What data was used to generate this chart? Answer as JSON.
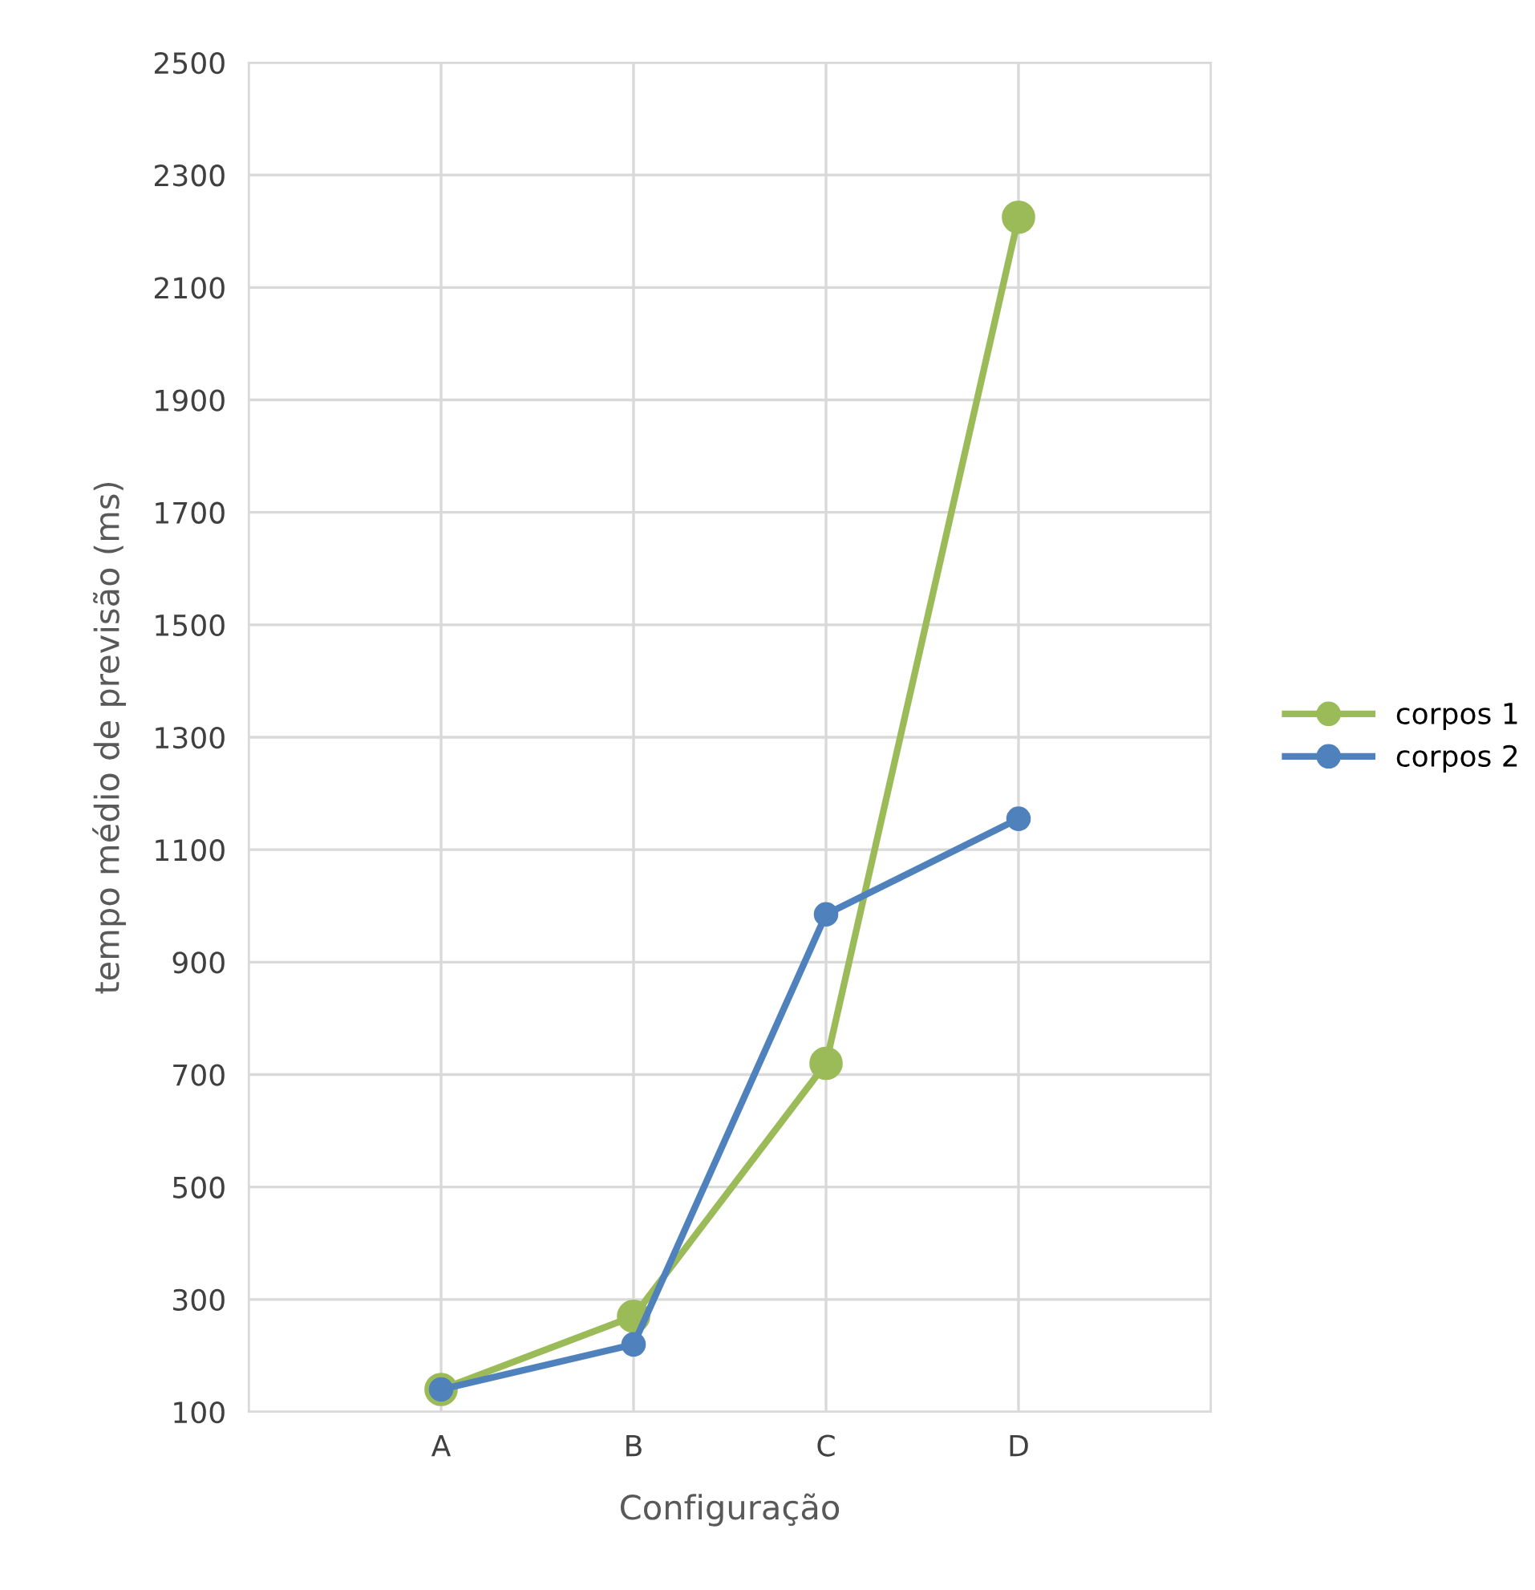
{
  "chart_data": {
    "type": "line",
    "xlabel": "Configuração",
    "ylabel": "tempo médio de previsão (ms)",
    "categories": [
      "A",
      "B",
      "C",
      "D"
    ],
    "series": [
      {
        "name": "corpos 1",
        "color": "#9bbb59",
        "values": [
          140,
          270,
          720,
          2225
        ]
      },
      {
        "name": "corpos 2",
        "color": "#4f81bd",
        "values": [
          140,
          220,
          985,
          1155
        ]
      }
    ],
    "ylim": [
      100,
      2500
    ],
    "yticks": [
      100,
      300,
      500,
      700,
      900,
      1100,
      1300,
      1500,
      1700,
      1900,
      2100,
      2300,
      2500
    ],
    "grid": true,
    "legend": "right",
    "marker": "circle",
    "line_style": "solid"
  }
}
